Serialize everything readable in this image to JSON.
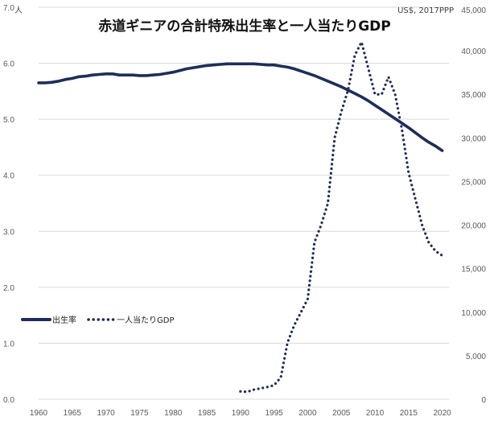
{
  "chart_data": {
    "type": "line",
    "title": "赤道ギニアの合計特殊出生率と一人当たりGDP",
    "left_axis": {
      "unit": "人",
      "min": 0,
      "max": 7,
      "step": 1,
      "tick_labels": [
        "0.0",
        "1.0",
        "2.0",
        "3.0",
        "4.0",
        "5.0",
        "6.0",
        "7.0"
      ]
    },
    "right_axis": {
      "unit": "US$, 2017PPP",
      "min": 0,
      "max": 45000,
      "step": 5000,
      "tick_labels": [
        "0",
        "5,000",
        "10,000",
        "15,000",
        "20,000",
        "25,000",
        "30,000",
        "35,000",
        "40,000",
        "45,000"
      ]
    },
    "x_axis": {
      "min": 1960,
      "max": 2021,
      "tick_labels": [
        "1960",
        "1965",
        "1970",
        "1975",
        "1980",
        "1985",
        "1990",
        "1995",
        "2000",
        "2005",
        "2010",
        "2015",
        "2020"
      ]
    },
    "grid": true,
    "legend_position": "middle-left",
    "colors": {
      "series": "#1f2d5a",
      "grid": "#d9d9d9"
    },
    "series": [
      {
        "name": "出生率",
        "axis": "left",
        "style": "solid",
        "x": [
          1960,
          1961,
          1962,
          1963,
          1964,
          1965,
          1966,
          1967,
          1968,
          1969,
          1970,
          1971,
          1972,
          1973,
          1974,
          1975,
          1976,
          1977,
          1978,
          1979,
          1980,
          1981,
          1982,
          1983,
          1984,
          1985,
          1986,
          1987,
          1988,
          1989,
          1990,
          1991,
          1992,
          1993,
          1994,
          1995,
          1996,
          1997,
          1998,
          1999,
          2000,
          2001,
          2002,
          2003,
          2004,
          2005,
          2006,
          2007,
          2008,
          2009,
          2010,
          2011,
          2012,
          2013,
          2014,
          2015,
          2016,
          2017,
          2018,
          2019,
          2020
        ],
        "values": [
          5.65,
          5.65,
          5.66,
          5.68,
          5.71,
          5.73,
          5.76,
          5.77,
          5.79,
          5.8,
          5.81,
          5.81,
          5.79,
          5.79,
          5.79,
          5.78,
          5.78,
          5.79,
          5.8,
          5.82,
          5.84,
          5.87,
          5.9,
          5.92,
          5.94,
          5.96,
          5.97,
          5.98,
          5.99,
          5.99,
          5.99,
          5.99,
          5.99,
          5.98,
          5.97,
          5.97,
          5.95,
          5.93,
          5.9,
          5.86,
          5.82,
          5.78,
          5.73,
          5.68,
          5.63,
          5.58,
          5.52,
          5.46,
          5.4,
          5.33,
          5.25,
          5.17,
          5.09,
          5.01,
          4.93,
          4.85,
          4.76,
          4.67,
          4.59,
          4.52,
          4.44
        ]
      },
      {
        "name": "一人当たりGDP",
        "axis": "right",
        "style": "dotted",
        "x": [
          1990,
          1991,
          1992,
          1993,
          1994,
          1995,
          1996,
          1997,
          1998,
          1999,
          2000,
          2001,
          2002,
          2003,
          2004,
          2005,
          2006,
          2007,
          2008,
          2009,
          2010,
          2011,
          2012,
          2013,
          2014,
          2015,
          2016,
          2017,
          2018,
          2019,
          2020
        ],
        "values": [
          900,
          850,
          1100,
          1250,
          1400,
          1600,
          2500,
          6500,
          8500,
          10000,
          11500,
          18000,
          20000,
          22500,
          30000,
          33000,
          35500,
          39500,
          41000,
          38000,
          35000,
          35000,
          37000,
          35000,
          31000,
          26000,
          23000,
          20000,
          18000,
          17000,
          16500
        ]
      }
    ]
  }
}
